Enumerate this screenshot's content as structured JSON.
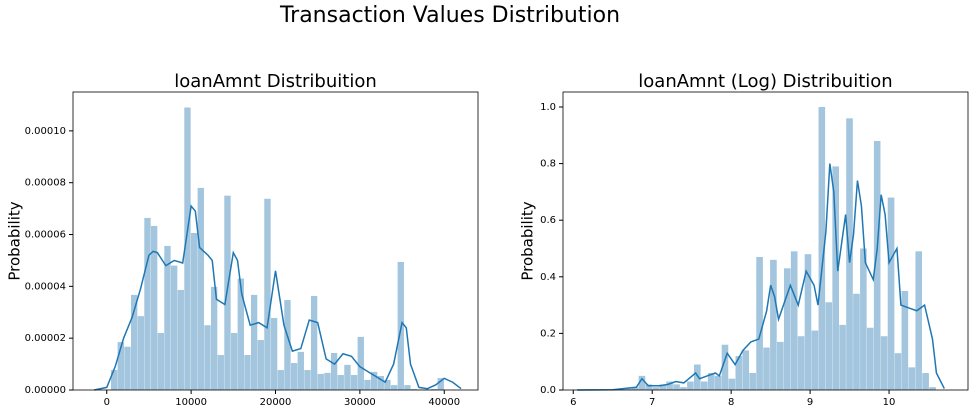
{
  "title": "Transaction Values Distribution",
  "chart_data": [
    {
      "type": "histogram",
      "title": "loanAmnt Distribuition",
      "ylabel": "Probability",
      "color": "#a3c6de",
      "bins": [
        500,
        1290,
        2080,
        2870,
        3660,
        4450,
        5240,
        6030,
        6820,
        7610,
        8400,
        9190,
        9980,
        10770,
        11560,
        12350,
        13140,
        13930,
        14720,
        15510,
        16300,
        17090,
        17880,
        18670,
        19460,
        20250,
        21040,
        21830,
        22620,
        23410,
        24200,
        24990,
        25780,
        26570,
        27360,
        28150,
        28940,
        29730,
        30520,
        31310,
        32100,
        32890,
        33680,
        34470,
        35260,
        36050,
        36840,
        37630,
        38420,
        39210,
        40000
      ],
      "values": [
        7.7e-06,
        1.85e-05,
        1.67e-05,
        3.67e-05,
        2.85e-05,
        6.64e-05,
        6.33e-05,
        2.2e-05,
        5.56e-05,
        4.8e-05,
        3.86e-05,
        0.000109,
        6.06e-05,
        7.8e-05,
        2.5e-05,
        3.98e-05,
        1.35e-05,
        7.5e-05,
        2.2e-05,
        4.3e-05,
        1.35e-05,
        3.67e-05,
        1.93e-05,
        7.38e-05,
        2.78e-05,
        7.7e-06,
        3.47e-05,
        1.04e-05,
        1.47e-05,
        7.7e-06,
        3.63e-05,
        6.2e-06,
        6.6e-06,
        1.43e-05,
        5.8e-06,
        9.7e-06,
        5.8e-06,
        2.05e-05,
        3.9e-06,
        7e-06,
        5.4e-06,
        3.9e-06,
        1.9e-06,
        4.94e-05,
        1.9e-06,
        4e-07,
        2e-07,
        2e-07,
        4e-07,
        4.6e-06
      ],
      "line": {
        "color": "#1f77b4",
        "x": [
          -1500,
          0,
          1000,
          2000,
          3000,
          4000,
          5000,
          5500,
          6000,
          7000,
          8000,
          9000,
          10000,
          10500,
          11000,
          12000,
          12500,
          13000,
          14000,
          15000,
          15500,
          16000,
          17000,
          18000,
          19000,
          20000,
          21000,
          22000,
          23000,
          24000,
          25000,
          26000,
          27000,
          28000,
          29000,
          30000,
          31000,
          32000,
          33000,
          34000,
          35000,
          35500,
          36000,
          37000,
          38000,
          39000,
          40000,
          41000,
          42000
        ],
        "values": [
          0,
          1e-06,
          9e-06,
          2e-05,
          2.8e-05,
          3.9e-05,
          5.2e-05,
          5.35e-05,
          5.3e-05,
          4.8e-05,
          5e-05,
          4.9e-05,
          7.1e-05,
          6.9e-05,
          5.5e-05,
          5.2e-05,
          5e-05,
          3.5e-05,
          3.3e-05,
          5.3e-05,
          5e-05,
          3.7e-05,
          2.5e-05,
          2.6e-05,
          2.4e-05,
          4.6e-05,
          2.5e-05,
          1.5e-05,
          1.6e-05,
          2.7e-05,
          2.6e-05,
          1.2e-05,
          1e-05,
          1.4e-05,
          1.3e-05,
          9e-06,
          7e-06,
          5e-06,
          3e-06,
          1e-05,
          2.6e-05,
          2.4e-05,
          1e-05,
          1e-06,
          5e-07,
          2e-06,
          4.5e-06,
          3e-06,
          5e-07
        ]
      },
      "xlim": [
        -4000,
        44000
      ],
      "xticks": [
        0,
        10000,
        20000,
        30000,
        40000
      ],
      "ylim": [
        0,
        0.000115
      ],
      "yticks": [
        {
          "value": 0,
          "label": "0.00000"
        },
        2e-05,
        4e-05,
        6e-05,
        8e-05,
        {
          "value": 0.0001,
          "label": "0.00010"
        }
      ]
    },
    {
      "type": "histogram",
      "title": "loanAmnt (Log) Distribuition",
      "ylabel": "Probability",
      "color": "#a3c6de",
      "bins": [
        6.215,
        6.302,
        6.39,
        6.478,
        6.565,
        6.653,
        6.741,
        6.828,
        6.916,
        7.003,
        7.091,
        7.179,
        7.266,
        7.354,
        7.442,
        7.529,
        7.617,
        7.705,
        7.792,
        7.88,
        7.967,
        8.055,
        8.143,
        8.23,
        8.318,
        8.406,
        8.493,
        8.581,
        8.669,
        8.756,
        8.844,
        8.931,
        9.019,
        9.107,
        9.194,
        9.282,
        9.37,
        9.457,
        9.545,
        9.633,
        9.72,
        9.808,
        9.895,
        9.983,
        10.071,
        10.158,
        10.246,
        10.334,
        10.421,
        10.509,
        10.597
      ],
      "values": [
        0,
        0,
        0,
        0,
        0.005,
        0.005,
        0.01,
        0.05,
        0.02,
        0.01,
        0.02,
        0.03,
        0.02,
        0.01,
        0.03,
        0.09,
        0.03,
        0.06,
        0.05,
        0.16,
        0.04,
        0.12,
        0.14,
        0.06,
        0.47,
        0.15,
        0.46,
        0.17,
        0.43,
        0.49,
        0.19,
        0.48,
        0.21,
        1.0,
        0.31,
        0.79,
        0.23,
        0.96,
        0.34,
        0.5,
        0.22,
        0.88,
        0.19,
        0.68,
        0.13,
        0.35,
        0.08,
        0.49,
        0.06,
        0.01
      ],
      "line": {
        "color": "#1f77b4",
        "x": [
          6.05,
          6.5,
          6.8,
          6.87,
          6.95,
          7.1,
          7.2,
          7.3,
          7.4,
          7.55,
          7.6,
          7.7,
          7.8,
          7.85,
          7.95,
          8.05,
          8.15,
          8.25,
          8.35,
          8.45,
          8.5,
          8.55,
          8.6,
          8.7,
          8.75,
          8.85,
          8.95,
          9.05,
          9.1,
          9.2,
          9.25,
          9.3,
          9.35,
          9.45,
          9.5,
          9.55,
          9.6,
          9.65,
          9.7,
          9.8,
          9.85,
          9.9,
          9.95,
          10.0,
          10.1,
          10.15,
          10.25,
          10.35,
          10.45,
          10.55,
          10.6,
          10.7
        ],
        "values": [
          0,
          0.001,
          0.01,
          0.04,
          0.015,
          0.015,
          0.02,
          0.03,
          0.025,
          0.06,
          0.04,
          0.05,
          0.06,
          0.05,
          0.13,
          0.09,
          0.14,
          0.17,
          0.18,
          0.28,
          0.37,
          0.33,
          0.25,
          0.33,
          0.37,
          0.3,
          0.42,
          0.37,
          0.3,
          0.56,
          0.8,
          0.7,
          0.42,
          0.62,
          0.45,
          0.55,
          0.74,
          0.65,
          0.45,
          0.39,
          0.5,
          0.69,
          0.62,
          0.45,
          0.5,
          0.3,
          0.29,
          0.28,
          0.3,
          0.18,
          0.06,
          0.005
        ]
      },
      "xlim": [
        5.87,
        11.0
      ],
      "xticks": [
        6,
        7,
        8,
        9,
        10
      ],
      "ylim": [
        0,
        1.053
      ],
      "yticks": [
        {
          "value": 0,
          "label": "0.0"
        },
        0.2,
        0.4,
        0.6,
        0.8,
        {
          "value": 1,
          "label": "1.0"
        }
      ]
    }
  ]
}
